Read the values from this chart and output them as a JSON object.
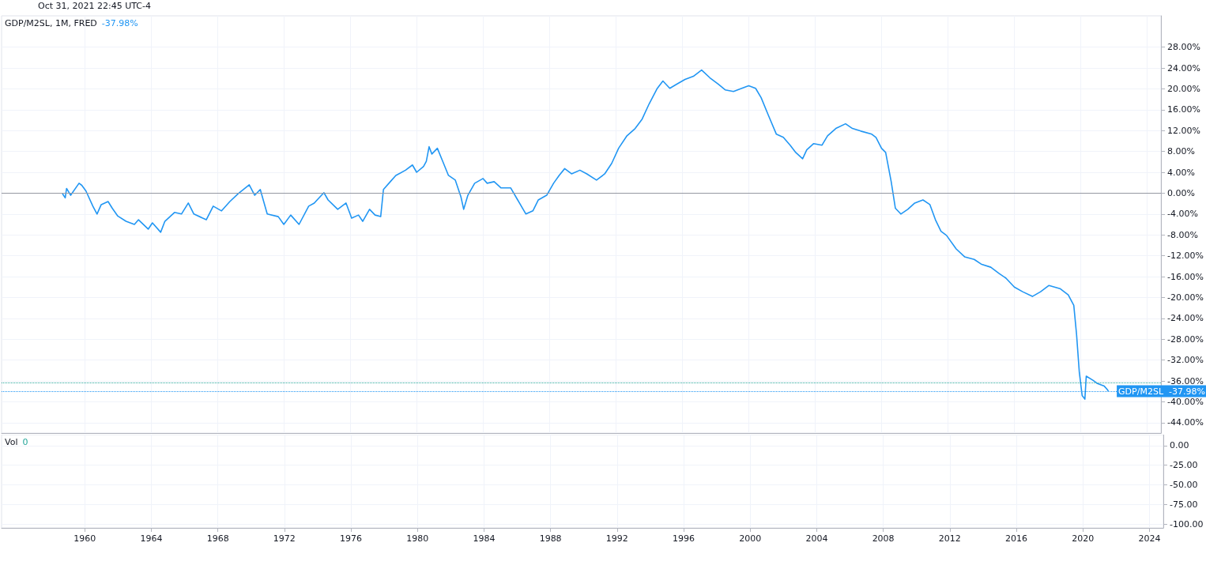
{
  "chart_data": [
    {
      "type": "line",
      "title": "GDP/M2SL, 1M, FRED",
      "subtitle": "Oct 31, 2021 22:45 UTC-4",
      "annotations": [
        "-37.98%"
      ],
      "tick_labels": "y",
      "grid": true,
      "xlim": [
        "1955-01",
        "2024-11"
      ],
      "xticks": [
        "1960",
        "1964",
        "1968",
        "1972",
        "1976",
        "1980",
        "1984",
        "1988",
        "1992",
        "1996",
        "2000",
        "2004",
        "2008",
        "2012",
        "2016",
        "2020",
        "2024"
      ],
      "ylim": [
        -46,
        34
      ],
      "yticks": [
        {
          "value": 28,
          "label": "28.00%"
        },
        {
          "value": 24,
          "label": "24.00%"
        },
        {
          "value": 20,
          "label": "20.00%"
        },
        {
          "value": 16,
          "label": "16.00%"
        },
        {
          "value": 12,
          "label": "12.00%"
        },
        {
          "value": 8,
          "label": "8.00%"
        },
        {
          "value": 4,
          "label": "4.00%"
        },
        {
          "value": 0,
          "label": "0.00%"
        },
        {
          "value": -4,
          "label": "-4.00%"
        },
        {
          "value": -8,
          "label": "-8.00%"
        },
        {
          "value": -12,
          "label": "-12.00%"
        },
        {
          "value": -16,
          "label": "-16.00%"
        },
        {
          "value": -20,
          "label": "-20.00%"
        },
        {
          "value": -24,
          "label": "-24.00%"
        },
        {
          "value": -28,
          "label": "-28.00%"
        },
        {
          "value": -32,
          "label": "-32.00%"
        },
        {
          "value": -36,
          "label": "-36.00%"
        },
        {
          "value": -40,
          "label": "-40.00%"
        },
        {
          "value": -44,
          "label": "-44.00%"
        }
      ],
      "ref_lines": [
        {
          "axis": "y",
          "value": 0,
          "color": "#9598a1",
          "line_style": "solid"
        },
        {
          "axis": "y",
          "value": -36.3,
          "color": "#26a69a",
          "line_style": "dotted"
        },
        {
          "axis": "y",
          "value": -37.98,
          "label": "GDP/M2SL  -37.98%",
          "color": "#2196f3",
          "line_style": "dotted"
        }
      ],
      "series": [
        {
          "color": "#2196f3",
          "x": [
            "1958-09",
            "1958-11",
            "1958-12",
            "1959-03",
            "1959-09",
            "1959-11",
            "1960-02",
            "1960-07",
            "1960-10",
            "1961-01",
            "1961-06",
            "1961-09",
            "1962-01",
            "1962-07",
            "1963-01",
            "1963-04",
            "1963-11",
            "1964-02",
            "1964-08",
            "1964-11",
            "1965-06",
            "1965-11",
            "1966-04",
            "1966-08",
            "1967-05",
            "1967-10",
            "1968-04",
            "1968-10",
            "1969-04",
            "1969-12",
            "1970-04",
            "1970-08",
            "1971-01",
            "1971-09",
            "1972-01",
            "1972-06",
            "1972-12",
            "1973-07",
            "1973-11",
            "1974-06",
            "1974-09",
            "1975-04",
            "1975-10",
            "1976-02",
            "1976-07",
            "1976-10",
            "1977-03",
            "1977-07",
            "1977-11",
            "1978-01",
            "1978-06",
            "1978-10",
            "1979-05",
            "1979-10",
            "1980-01",
            "1980-06",
            "1980-08",
            "1980-10",
            "1980-12",
            "1981-04",
            "1981-08",
            "1981-12",
            "1982-05",
            "1982-09",
            "1982-11",
            "1983-02",
            "1983-07",
            "1984-01",
            "1984-04",
            "1984-09",
            "1985-02",
            "1985-09",
            "1986-02",
            "1986-08",
            "1987-01",
            "1987-05",
            "1987-11",
            "1988-04",
            "1988-08",
            "1988-12",
            "1989-05",
            "1989-11",
            "1990-04",
            "1990-11",
            "1991-05",
            "1991-10",
            "1992-03",
            "1992-09",
            "1993-03",
            "1993-08",
            "1994-01",
            "1994-07",
            "1994-11",
            "1995-04",
            "1995-09",
            "1996-03",
            "1996-09",
            "1997-03",
            "1997-09",
            "1998-03",
            "1998-08",
            "1999-02",
            "1999-08",
            "2000-01",
            "2000-06",
            "2000-10",
            "2001-03",
            "2001-09",
            "2002-02",
            "2002-07",
            "2002-11",
            "2003-04",
            "2003-07",
            "2003-12",
            "2004-06",
            "2004-10",
            "2005-04",
            "2005-11",
            "2006-04",
            "2006-10",
            "2007-06",
            "2007-09",
            "2008-01",
            "2008-04",
            "2008-08",
            "2008-11",
            "2009-03",
            "2009-08",
            "2010-01",
            "2010-07",
            "2010-12",
            "2011-04",
            "2011-08",
            "2011-12",
            "2012-07",
            "2013-01",
            "2013-08",
            "2014-01",
            "2014-08",
            "2015-02",
            "2015-07",
            "2016-01",
            "2016-07",
            "2017-02",
            "2017-08",
            "2018-02",
            "2018-10",
            "2019-04",
            "2019-08",
            "2019-10",
            "2019-12",
            "2020-02",
            "2020-04",
            "2020-05",
            "2020-10",
            "2021-01",
            "2021-06",
            "2021-08",
            "2021-09"
          ],
          "values": [
            -0.1,
            -0.9,
            0.9,
            -0.4,
            1.9,
            1.5,
            0.4,
            -2.5,
            -4,
            -2.2,
            -1.6,
            -2.9,
            -4.4,
            -5.4,
            -6,
            -5.1,
            -6.9,
            -5.7,
            -7.5,
            -5.4,
            -3.7,
            -4,
            -1.9,
            -4,
            -5.1,
            -2.5,
            -3.4,
            -1.6,
            -0.1,
            1.6,
            -0.4,
            0.7,
            -4,
            -4.5,
            -6,
            -4.2,
            -6,
            -2.5,
            -1.9,
            0.1,
            -1.3,
            -3.1,
            -1.9,
            -4.8,
            -4.2,
            -5.4,
            -3.1,
            -4.2,
            -4.5,
            0.7,
            2.2,
            3.4,
            4.4,
            5.4,
            4,
            5.1,
            6.1,
            8.9,
            7.5,
            8.6,
            6,
            3.4,
            2.5,
            -0.7,
            -3.1,
            -0.4,
            1.9,
            2.8,
            1.9,
            2.2,
            1,
            1,
            -1.3,
            -4,
            -3.4,
            -1.3,
            -0.4,
            1.9,
            3.4,
            4.7,
            3.7,
            4.4,
            3.7,
            2.5,
            3.7,
            5.7,
            8.6,
            11,
            12.4,
            14.2,
            17.1,
            20.1,
            21.5,
            20.1,
            20.9,
            21.8,
            22.4,
            23.6,
            22.1,
            20.9,
            19.8,
            19.5,
            20.1,
            20.6,
            20.1,
            18.3,
            15.1,
            11.3,
            10.7,
            9.2,
            7.8,
            6.6,
            8.3,
            9.5,
            9.2,
            11,
            12.4,
            13.3,
            12.4,
            11.9,
            11.3,
            10.7,
            8.6,
            7.8,
            2.2,
            -2.9,
            -4,
            -3.1,
            -1.9,
            -1.3,
            -2.2,
            -5.1,
            -7.3,
            -8.1,
            -10.7,
            -12.2,
            -12.7,
            -13.6,
            -14.2,
            -15.4,
            -16.3,
            -18,
            -18.9,
            -19.8,
            -18.9,
            -17.7,
            -18.3,
            -19.5,
            -21.5,
            -27.1,
            -34.4,
            -38.8,
            -39.5,
            -35.1,
            -35.9,
            -36.5,
            -37,
            -37.6,
            -37.98
          ]
        }
      ]
    },
    {
      "type": "bar",
      "title": "Vol",
      "annotations": [
        "0"
      ],
      "grid": true,
      "xlim": [
        "1955-01",
        "2024-11"
      ],
      "xticks": [
        "1960",
        "1964",
        "1968",
        "1972",
        "1976",
        "1980",
        "1984",
        "1988",
        "1992",
        "1996",
        "2000",
        "2004",
        "2008",
        "2012",
        "2016",
        "2020",
        "2024"
      ],
      "ylim": [
        -105,
        14
      ],
      "yticks": [
        {
          "value": 0,
          "label": "0.00"
        },
        {
          "value": -25,
          "label": "-25.00"
        },
        {
          "value": -50,
          "label": "-50.00"
        },
        {
          "value": -75,
          "label": "-75.00"
        },
        {
          "value": -100,
          "label": "-100.00"
        }
      ]
    }
  ]
}
